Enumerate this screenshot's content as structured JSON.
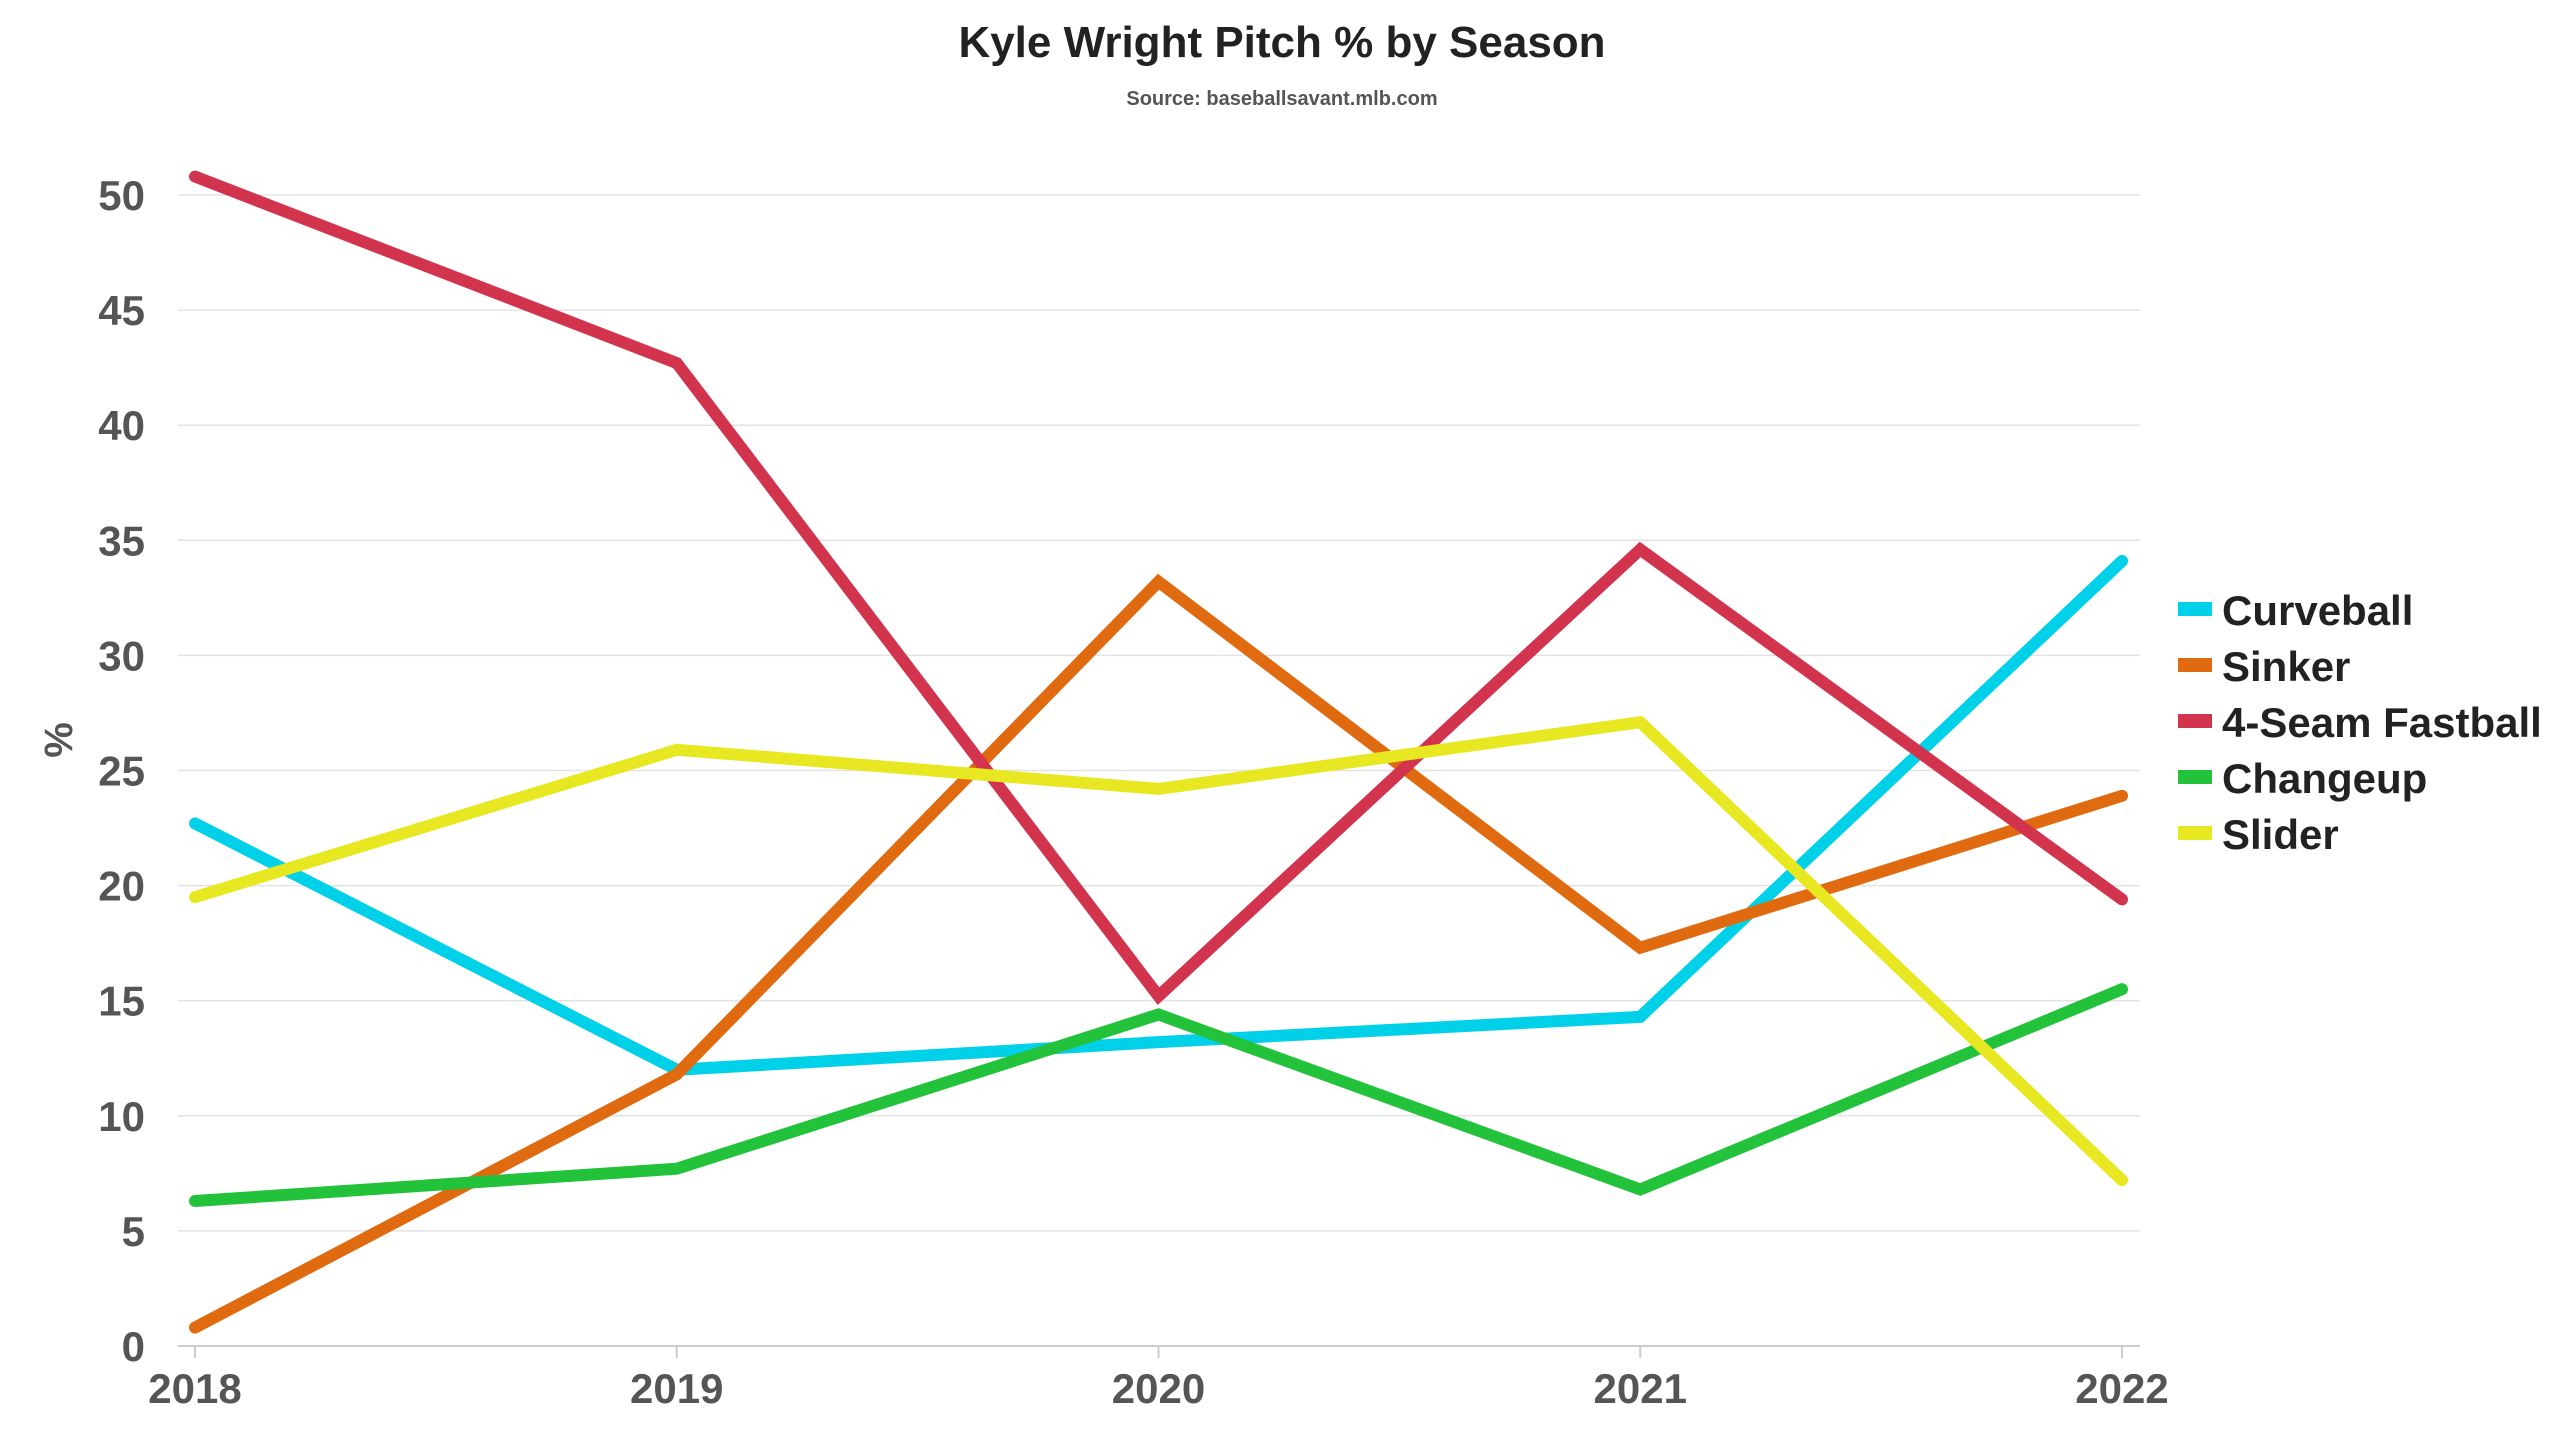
{
  "chart_data": {
    "type": "line",
    "title": "Kyle Wright Pitch % by Season",
    "subtitle": "Source: baseballsavant.mlb.com",
    "xlabel": "",
    "ylabel": "%",
    "categories": [
      "2018",
      "2019",
      "2020",
      "2021",
      "2022"
    ],
    "ylim": [
      0,
      50
    ],
    "yticks": [
      0,
      5,
      10,
      15,
      20,
      25,
      30,
      35,
      40,
      45,
      50
    ],
    "grid": true,
    "legend_position": "right",
    "series": [
      {
        "name": "Curveball",
        "color": "#00d0e8",
        "values": [
          22.7,
          12.0,
          13.2,
          14.3,
          34.1
        ]
      },
      {
        "name": "Sinker",
        "color": "#e06a10",
        "values": [
          0.8,
          11.8,
          33.2,
          17.3,
          23.9
        ]
      },
      {
        "name": "4-Seam Fastball",
        "color": "#d2334d",
        "values": [
          50.8,
          42.7,
          15.2,
          34.6,
          19.4
        ]
      },
      {
        "name": "Changeup",
        "color": "#22c23a",
        "values": [
          6.3,
          7.7,
          14.4,
          6.8,
          15.5
        ]
      },
      {
        "name": "Slider",
        "color": "#e8e822",
        "values": [
          19.5,
          25.9,
          24.2,
          27.1,
          7.2
        ]
      }
    ]
  }
}
